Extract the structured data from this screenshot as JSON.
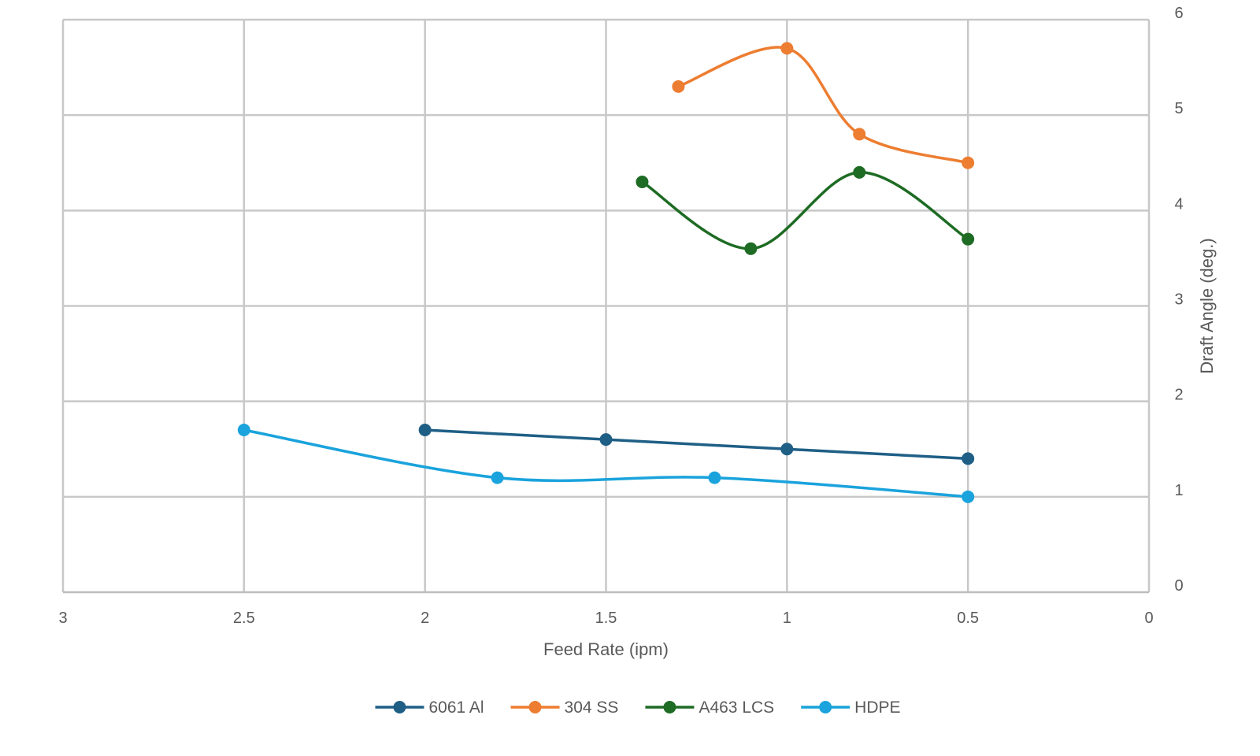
{
  "chart_data": {
    "type": "line",
    "title": "",
    "xlabel": "Feed Rate (ipm)",
    "ylabel": "Draft Angle (deg.)",
    "xlim": [
      0,
      3
    ],
    "x_reversed": true,
    "ylim": [
      0,
      6
    ],
    "y_axis_side": "right",
    "grid": true,
    "legend_position": "bottom",
    "smoothed": true,
    "x_ticks": [
      "3",
      "2.5",
      "2",
      "1.5",
      "1",
      "0.5",
      "0"
    ],
    "y_ticks": [
      "0",
      "1",
      "2",
      "3",
      "4",
      "5",
      "6"
    ],
    "x_tick_values": [
      3,
      2.5,
      2,
      1.5,
      1,
      0.5,
      0
    ],
    "y_tick_values": [
      0,
      1,
      2,
      3,
      4,
      5,
      6
    ],
    "series": [
      {
        "name": "6061 Al",
        "color": "#1f5f86",
        "x": [
          2.0,
          1.5,
          1.0,
          0.5
        ],
        "y": [
          1.7,
          1.6,
          1.5,
          1.4
        ]
      },
      {
        "name": "304 SS",
        "color": "#ed7d31",
        "x": [
          1.3,
          1.0,
          0.8,
          0.5
        ],
        "y": [
          5.3,
          5.7,
          4.8,
          4.5
        ]
      },
      {
        "name": "A463 LCS",
        "color": "#1e6b24",
        "x": [
          1.4,
          1.1,
          0.8,
          0.5
        ],
        "y": [
          4.3,
          3.6,
          4.4,
          3.7
        ]
      },
      {
        "name": "HDPE",
        "color": "#1aa3dc",
        "x": [
          2.5,
          1.8,
          1.2,
          0.5
        ],
        "y": [
          1.7,
          1.2,
          1.2,
          1.0
        ]
      }
    ]
  }
}
